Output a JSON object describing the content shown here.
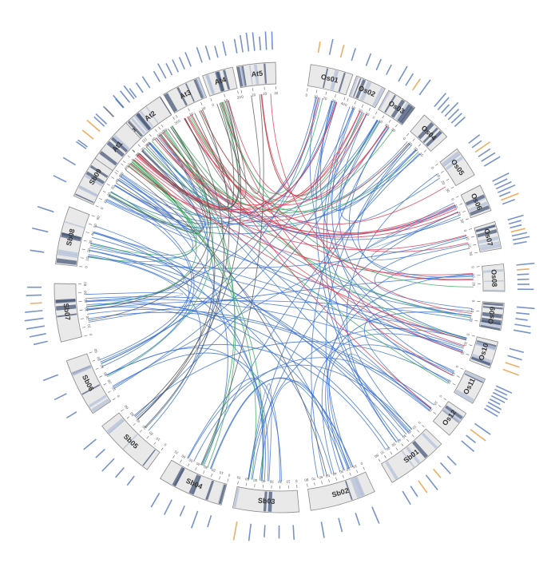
{
  "colors": {
    "intra": "#3a6fd0",
    "group_green": "#37a85a",
    "group_red": "#d93a50",
    "group_dark": "#555555",
    "gene_label": "#4a6fb8",
    "gene_label_highlight": "#e8922e",
    "band_dark": "#4a5a7a",
    "band_light": "#b6c2d8"
  },
  "chromosomes": [
    {
      "name": "Sb01",
      "length": 80
    },
    {
      "name": "Sb02",
      "length": 80
    },
    {
      "name": "Sb03",
      "length": 70
    },
    {
      "name": "Sb04",
      "length": 70
    },
    {
      "name": "Sb05",
      "length": 60
    },
    {
      "name": "Sb06",
      "length": 60
    },
    {
      "name": "Sb07",
      "length": 60
    },
    {
      "name": "Sb08",
      "length": 60
    },
    {
      "name": "Sb09",
      "length": 60
    },
    {
      "name": "Sb10",
      "length": 60
    },
    {
      "name": "At1",
      "length": 30
    },
    {
      "name": "At2",
      "length": 20
    },
    {
      "name": "At3",
      "length": 25
    },
    {
      "name": "At4",
      "length": 20
    },
    {
      "name": "At5",
      "length": 30
    },
    {
      "name": "Os01",
      "length": 40
    },
    {
      "name": "Os02",
      "length": 35
    },
    {
      "name": "Os03",
      "length": 35
    },
    {
      "name": "Os04",
      "length": 35
    },
    {
      "name": "Os05",
      "length": 30
    },
    {
      "name": "Os06",
      "length": 30
    },
    {
      "name": "Os07",
      "length": 30
    },
    {
      "name": "Os08",
      "length": 28
    },
    {
      "name": "Os09",
      "length": 25
    },
    {
      "name": "Os10",
      "length": 25
    },
    {
      "name": "Os11",
      "length": 28
    },
    {
      "name": "Os12",
      "length": 28
    }
  ],
  "links_note": ""
}
